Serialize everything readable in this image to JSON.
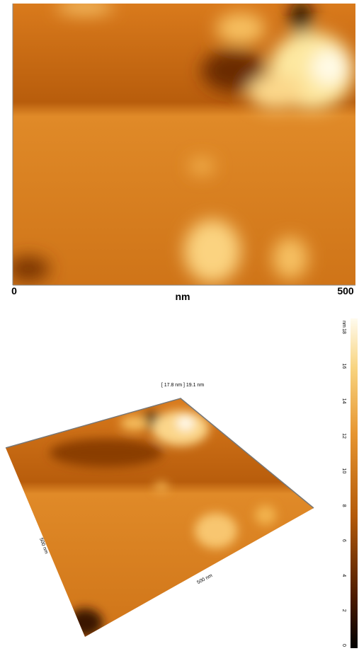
{
  "top_image": {
    "x_start": "0",
    "x_unit": "nm",
    "x_end": "500"
  },
  "view_3d": {
    "z_annotation": "[ 17.8 nm ] 19.1 nm",
    "left_axis": "500 nm",
    "bottom_axis": "500 nm"
  },
  "colorbar": {
    "unit": "nm",
    "ticks": [
      "18",
      "16",
      "14",
      "12",
      "10",
      "8",
      "6",
      "4",
      "2",
      "0"
    ]
  }
}
